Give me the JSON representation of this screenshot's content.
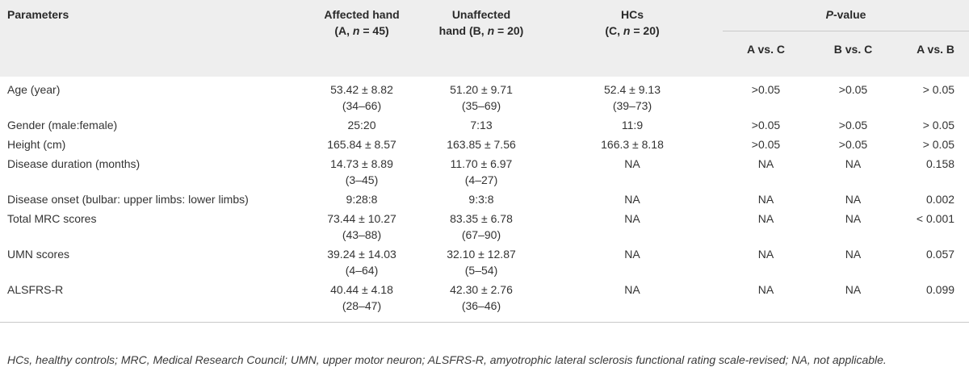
{
  "table": {
    "headers": {
      "parameters": "Parameters",
      "affected_l1": "Affected hand",
      "affected_l2_pre": "(A, ",
      "affected_l2_n": "n",
      "affected_l2_post": " = 45)",
      "unaffected_l1": "Unaffected",
      "unaffected_l2_pre": "hand (B, ",
      "unaffected_l2_n": "n",
      "unaffected_l2_post": " = 20)",
      "hcs_l1": "HCs",
      "hcs_l2_pre": "(C, ",
      "hcs_l2_n": "n",
      "hcs_l2_post": " = 20)",
      "pvalue_p": "P",
      "pvalue_rest": "-value",
      "avc": "A vs. C",
      "bvc": "B vs. C",
      "avb": "A vs. B"
    },
    "rows": [
      {
        "param": "Age (year)",
        "a1": "53.42 ± 8.82",
        "a2": "(34–66)",
        "b1": "51.20 ± 9.71",
        "b2": "(35–69)",
        "c1": "52.4 ± 9.13",
        "c2": "(39–73)",
        "avc": ">0.05",
        "bvc": ">0.05",
        "avb": "> 0.05"
      },
      {
        "param": "Gender (male:female)",
        "a1": "25:20",
        "a2": "",
        "b1": "7:13",
        "b2": "",
        "c1": "11:9",
        "c2": "",
        "avc": ">0.05",
        "bvc": ">0.05",
        "avb": "> 0.05"
      },
      {
        "param": "Height (cm)",
        "a1": "165.84 ± 8.57",
        "a2": "",
        "b1": "163.85 ± 7.56",
        "b2": "",
        "c1": "166.3 ± 8.18",
        "c2": "",
        "avc": ">0.05",
        "bvc": ">0.05",
        "avb": "> 0.05"
      },
      {
        "param": "Disease duration (months)",
        "a1": "14.73 ± 8.89",
        "a2": "(3–45)",
        "b1": "11.70 ± 6.97",
        "b2": "(4–27)",
        "c1": "NA",
        "c2": "",
        "avc": "NA",
        "bvc": "NA",
        "avb": "0.158"
      },
      {
        "param": "Disease onset (bulbar: upper limbs: lower limbs)",
        "a1": "9:28:8",
        "a2": "",
        "b1": "9:3:8",
        "b2": "",
        "c1": "NA",
        "c2": "",
        "avc": "NA",
        "bvc": "NA",
        "avb": "0.002"
      },
      {
        "param": "Total MRC scores",
        "a1": "73.44 ± 10.27",
        "a2": "(43–88)",
        "b1": "83.35 ± 6.78",
        "b2": "(67–90)",
        "c1": "NA",
        "c2": "",
        "avc": "NA",
        "bvc": "NA",
        "avb": "< 0.001"
      },
      {
        "param": "UMN scores",
        "a1": "39.24 ± 14.03",
        "a2": "(4–64)",
        "b1": "32.10 ± 12.87",
        "b2": "(5–54)",
        "c1": "NA",
        "c2": "",
        "avc": "NA",
        "bvc": "NA",
        "avb": "0.057"
      },
      {
        "param": "ALSFRS-R",
        "a1": "40.44 ± 4.18",
        "a2": "(28–47)",
        "b1": "42.30 ± 2.76",
        "b2": "(36–46)",
        "c1": "NA",
        "c2": "",
        "avc": "NA",
        "bvc": "NA",
        "avb": "0.099"
      }
    ]
  },
  "footnote": "HCs, healthy controls; MRC, Medical Research Council; UMN, upper motor neuron; ALSFRS-R, amyotrophic lateral sclerosis functional rating scale-revised; NA, not applicable."
}
